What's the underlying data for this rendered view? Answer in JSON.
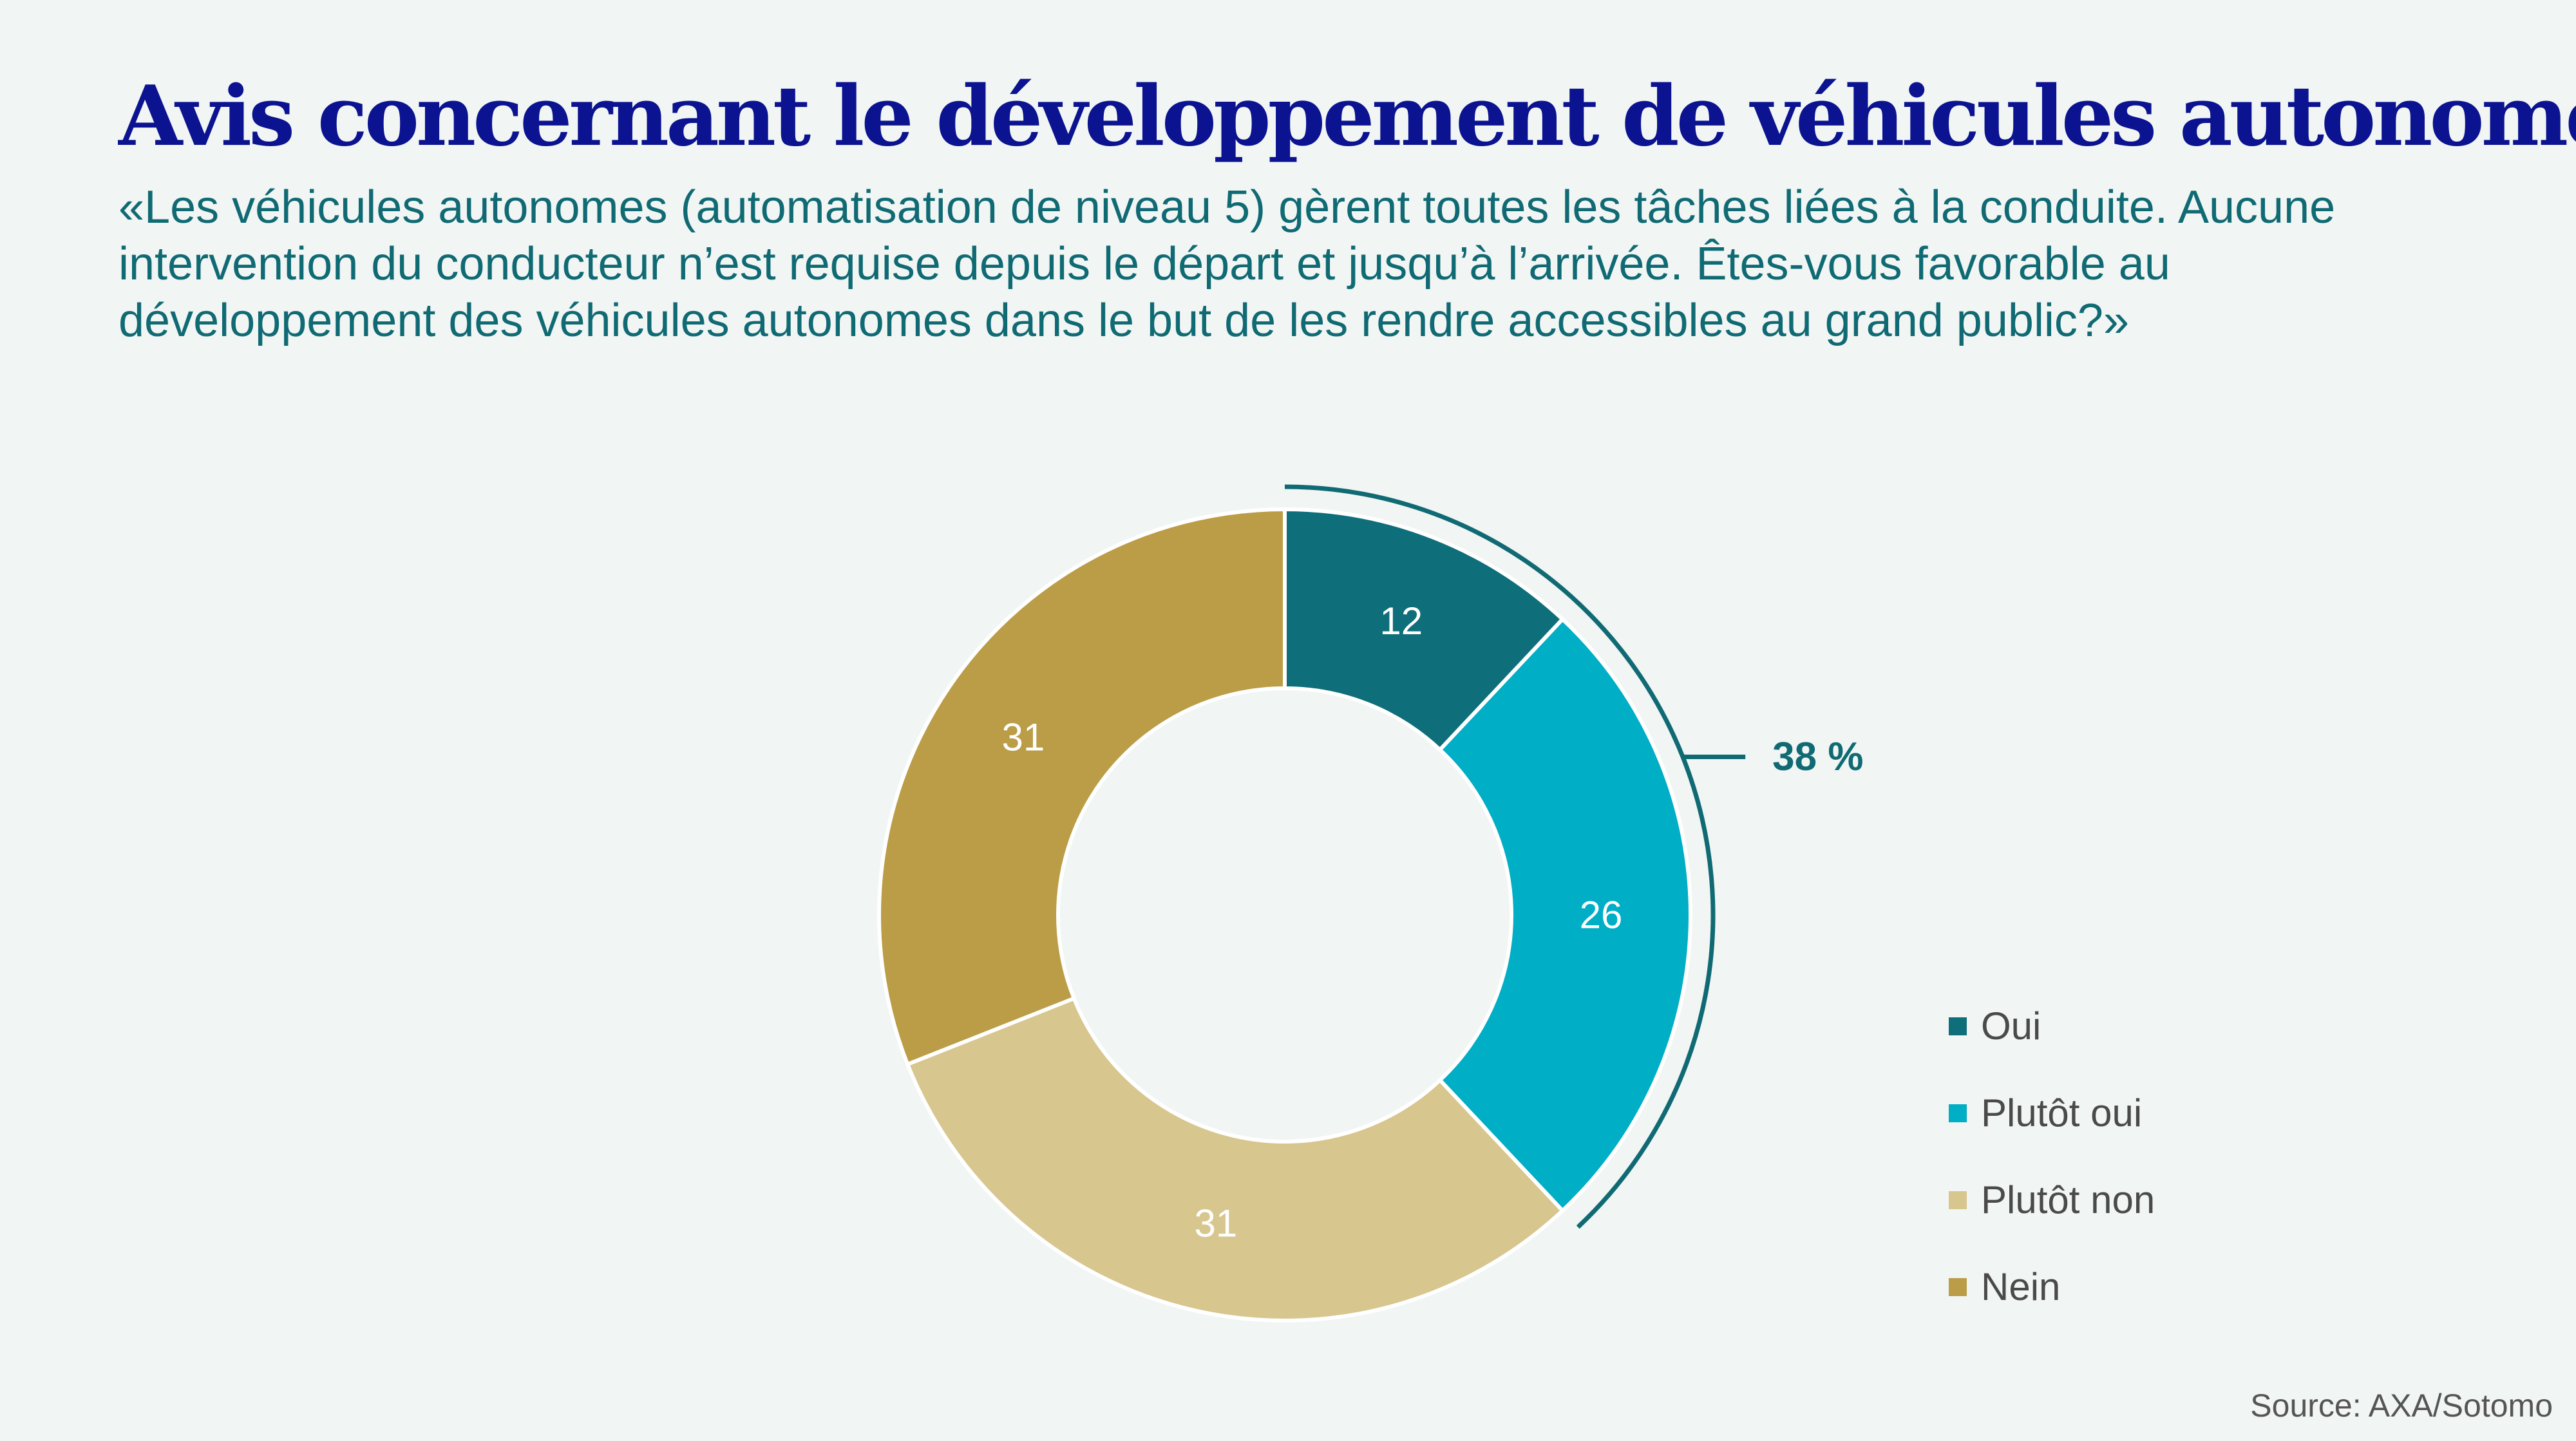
{
  "title": "Avis concernant le développement de véhicules autonomes",
  "subtitle": "«Les véhicules autonomes (automatisation de niveau 5) gèrent toutes les tâches liées à la conduite. Aucune intervention du conducteur n’est requise depuis le départ et jusqu’à l’arrivée. Êtes-vous favorable au développement des véhicules autonomes dans le but de les rendre accessibles au grand public?»",
  "source": "Source: AXA/Sotomo",
  "chart_data": {
    "type": "pie",
    "variant": "donut",
    "categories": [
      "Oui",
      "Plutôt oui",
      "Plutôt non",
      "Nein"
    ],
    "values": [
      12,
      26,
      31,
      31
    ],
    "value_labels": [
      "12",
      "26",
      "31",
      "31"
    ],
    "colors": [
      "#0e6e7a",
      "#00aec6",
      "#d8c68f",
      "#bb9d48"
    ],
    "legend_position": "right",
    "annotation": {
      "label": "38 %",
      "covers": [
        "Oui",
        "Plutôt oui"
      ],
      "color": "#106a74"
    }
  }
}
